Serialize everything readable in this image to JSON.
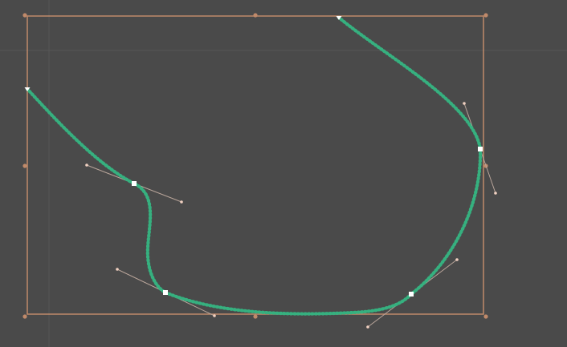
{
  "editor": {
    "mode": "bezier-edit",
    "colors": {
      "background": "#4a4a4a",
      "grid": "#565656",
      "bounding_box": "#c08a6a",
      "curve": "#2f9b74",
      "curve_bead": "#36b07f",
      "anchor": "#ffffff",
      "handle_line": "#b9a59a",
      "handle_point": "#f1d1c1"
    },
    "bounding_box": {
      "visible": true,
      "resize_handles": [
        "top-left",
        "top-center",
        "top-right",
        "middle-left",
        "middle-right",
        "bottom-left",
        "bottom-center",
        "bottom-right"
      ]
    },
    "curve": {
      "closed": false,
      "start_marker": "open-endpoint",
      "end_marker": "open-endpoint",
      "anchor_count": 6,
      "control_handles_shown": 4
    },
    "guides": {
      "grid_lines": true
    }
  }
}
